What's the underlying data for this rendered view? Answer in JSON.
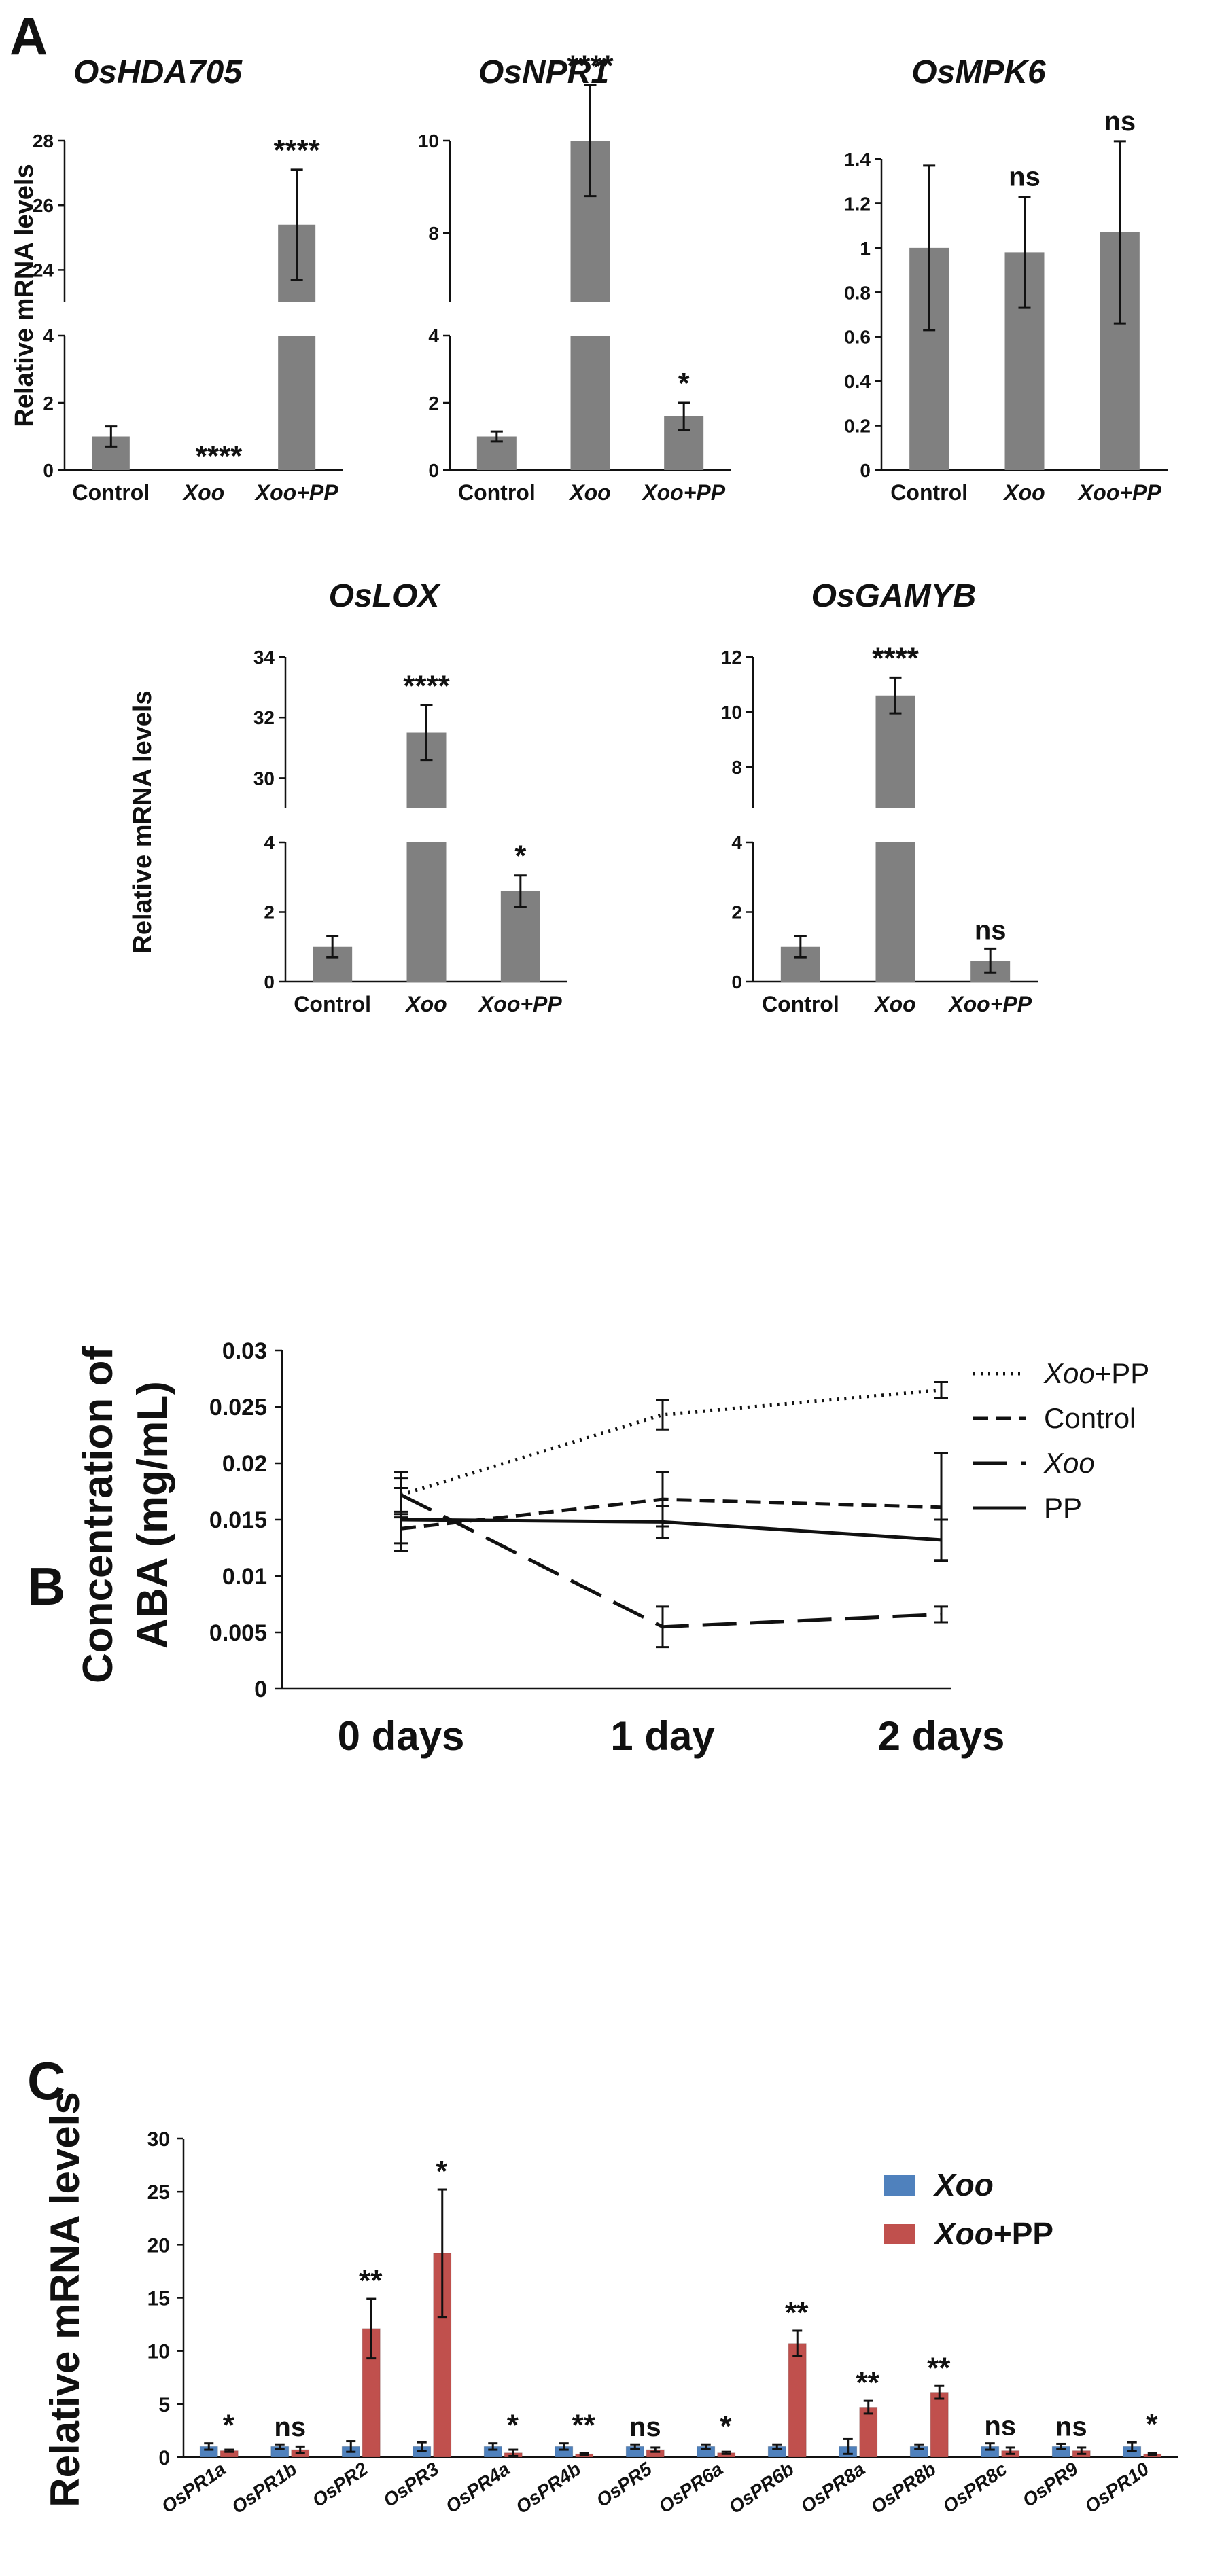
{
  "chart_data": [
    {
      "panel": "A",
      "type": "bar",
      "title": "OsHDA705",
      "ylabel": "Relative mRNA levels",
      "categories": [
        "Control",
        "Xoo",
        "Xoo+PP"
      ],
      "values": [
        1.0,
        0.0,
        25.4
      ],
      "errors": [
        0.3,
        0.0,
        1.7
      ],
      "significance": [
        "",
        "****",
        "****"
      ],
      "axis_break": true,
      "ylim_lower": [
        0,
        4
      ],
      "ylim_upper": [
        23,
        28
      ],
      "yticks_lower": [
        0,
        2,
        4
      ],
      "yticks_upper": [
        24,
        26,
        28
      ],
      "color": "#808080"
    },
    {
      "panel": "A",
      "type": "bar",
      "title": "OsNPR1",
      "categories": [
        "Control",
        "Xoo",
        "Xoo+PP"
      ],
      "values": [
        1.0,
        10.0,
        1.6
      ],
      "errors": [
        0.15,
        1.2,
        0.4
      ],
      "significance": [
        "",
        "****",
        "*"
      ],
      "axis_break": true,
      "ylim_lower": [
        0,
        4
      ],
      "ylim_upper": [
        6.5,
        10
      ],
      "yticks_lower": [
        0,
        2,
        4
      ],
      "yticks_upper": [
        8,
        10
      ],
      "color": "#808080"
    },
    {
      "panel": "A",
      "type": "bar",
      "title": "OsMPK6",
      "categories": [
        "Control",
        "Xoo",
        "Xoo+PP"
      ],
      "values": [
        1.0,
        0.98,
        1.07
      ],
      "errors": [
        0.37,
        0.25,
        0.41
      ],
      "significance": [
        "",
        "ns",
        "ns"
      ],
      "ylim": [
        0,
        1.4
      ],
      "yticks": [
        "0",
        "0.2",
        "0.4",
        "0.6",
        "0.8",
        "1",
        "1.2",
        "1.4"
      ],
      "color": "#808080"
    },
    {
      "panel": "A",
      "type": "bar",
      "title": "OsLOX",
      "ylabel": "Relative mRNA levels",
      "categories": [
        "Control",
        "Xoo",
        "Xoo+PP"
      ],
      "values": [
        1.0,
        31.5,
        2.6
      ],
      "errors": [
        0.3,
        0.9,
        0.45
      ],
      "significance": [
        "",
        "****",
        "*"
      ],
      "axis_break": true,
      "ylim_lower": [
        0,
        4
      ],
      "ylim_upper": [
        29,
        34
      ],
      "yticks_lower": [
        0,
        2,
        4
      ],
      "yticks_upper": [
        30,
        32,
        34
      ],
      "color": "#808080"
    },
    {
      "panel": "A",
      "type": "bar",
      "title": "OsGAMYB",
      "categories": [
        "Control",
        "Xoo",
        "Xoo+PP"
      ],
      "values": [
        1.0,
        10.6,
        0.6
      ],
      "errors": [
        0.3,
        0.65,
        0.35
      ],
      "significance": [
        "",
        "****",
        "ns"
      ],
      "axis_break": true,
      "ylim_lower": [
        0,
        4
      ],
      "ylim_upper": [
        6.5,
        12
      ],
      "yticks_lower": [
        0,
        2,
        4
      ],
      "yticks_upper": [
        8,
        10,
        12
      ],
      "color": "#808080"
    },
    {
      "panel": "B",
      "type": "line",
      "ylabel": "Concentration of ABA (mg/mL)",
      "categories": [
        "0 days",
        "1 day",
        "2 days"
      ],
      "ylim": [
        0,
        0.03
      ],
      "yticks": [
        "0",
        "0.005",
        "0.01",
        "0.015",
        "0.02",
        "0.025",
        "0.03"
      ],
      "series": [
        {
          "name": "Xoo+PP",
          "style": "dotted",
          "values": [
            0.0172,
            0.0243,
            0.0265
          ],
          "errors": [
            0.0015,
            0.0013,
            0.0007
          ]
        },
        {
          "name": "Control",
          "style": "dashed",
          "values": [
            0.0142,
            0.0168,
            0.0161
          ],
          "errors": [
            0.0013,
            0.0024,
            0.0048
          ]
        },
        {
          "name": "Xoo",
          "style": "long-dashed",
          "values": [
            0.0172,
            0.0055,
            0.0066
          ],
          "errors": [
            0.002,
            0.0018,
            0.0007
          ]
        },
        {
          "name": "PP",
          "style": "solid",
          "values": [
            0.015,
            0.0148,
            0.0132
          ],
          "errors": [
            0.0028,
            0.0014,
            0.0018
          ]
        }
      ],
      "legend": [
        {
          "italic": "Xoo",
          "rest": "+PP"
        },
        {
          "italic": "",
          "rest": "Control"
        },
        {
          "italic": "Xoo",
          "rest": ""
        },
        {
          "italic": "",
          "rest": "PP"
        }
      ],
      "legend_position": "right"
    },
    {
      "panel": "C",
      "type": "bar",
      "ylabel": "Relative mRNA levels",
      "categories": [
        "OsPR1a",
        "OsPR1b",
        "OsPR2",
        "OsPR3",
        "OsPR4a",
        "OsPR4b",
        "OsPR5",
        "OsPR6a",
        "OsPR6b",
        "OsPR8a",
        "OsPR8b",
        "OsPR8c",
        "OsPR9",
        "OsPR10"
      ],
      "ylim": [
        0,
        30
      ],
      "yticks": [
        "0",
        "5",
        "10",
        "15",
        "20",
        "25",
        "30"
      ],
      "series": [
        {
          "name": "Xoo",
          "color": "#4f81bd",
          "values": [
            1.0,
            1.0,
            1.0,
            1.0,
            1.0,
            1.0,
            1.0,
            1.0,
            1.0,
            1.0,
            1.0,
            1.0,
            1.0,
            1.0
          ],
          "errors": [
            0.3,
            0.2,
            0.5,
            0.4,
            0.3,
            0.3,
            0.2,
            0.2,
            0.2,
            0.7,
            0.2,
            0.3,
            0.25,
            0.4
          ]
        },
        {
          "name": "Xoo+PP",
          "color": "#c0504d",
          "values": [
            0.6,
            0.7,
            12.1,
            19.2,
            0.4,
            0.3,
            0.7,
            0.4,
            10.7,
            4.7,
            6.1,
            0.6,
            0.6,
            0.3
          ],
          "errors": [
            0.1,
            0.3,
            2.8,
            6.0,
            0.3,
            0.1,
            0.2,
            0.1,
            1.2,
            0.6,
            0.6,
            0.3,
            0.3,
            0.1
          ]
        }
      ],
      "significance": [
        "*",
        "ns",
        "**",
        "*",
        "*",
        "**",
        "ns",
        "*",
        "**",
        "**",
        "**",
        "ns",
        "ns",
        "*"
      ],
      "legend": [
        {
          "italic": "Xoo",
          "rest": ""
        },
        {
          "italic": "Xoo",
          "rest": "+PP"
        }
      ],
      "legend_position": "top-right"
    }
  ],
  "panel_labels": {
    "a": "A",
    "b": "B",
    "c": "C"
  }
}
